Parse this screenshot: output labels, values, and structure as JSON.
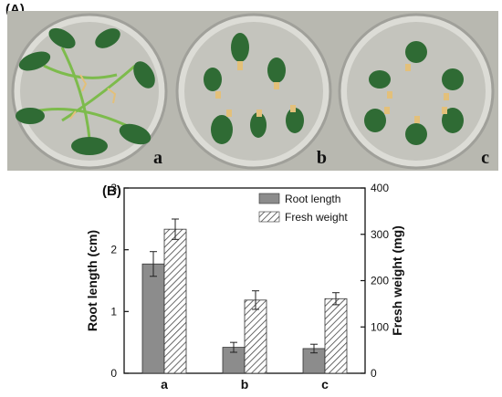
{
  "panels": {
    "a_label": "(A)",
    "b_label": "(B)"
  },
  "photos": [
    {
      "tag": "a"
    },
    {
      "tag": "b"
    },
    {
      "tag": "c"
    }
  ],
  "colors": {
    "root_bar": "#8c8c8c",
    "hatch": "#444444",
    "axis": "#111111",
    "petri_bg": "#c9c9c4",
    "leaf": "#2f6b34",
    "stem": "#7dbb4c",
    "root": "#e3c07a"
  },
  "chart_data": {
    "type": "bar",
    "categories": [
      "a",
      "b",
      "c"
    ],
    "y_left": {
      "label": "Root length (cm)",
      "range": [
        0,
        3
      ],
      "ticks": [
        0,
        1,
        2,
        3
      ]
    },
    "y_right": {
      "label": "Fresh weight (mg)",
      "range": [
        0,
        400
      ],
      "ticks": [
        0,
        100,
        200,
        300,
        400
      ]
    },
    "series": [
      {
        "name": "Root length",
        "axis": "left",
        "style": "solid",
        "values": [
          1.77,
          0.42,
          0.4
        ],
        "errors": [
          0.2,
          0.08,
          0.07
        ]
      },
      {
        "name": "Fresh weight",
        "axis": "right",
        "style": "hatched",
        "values": [
          311,
          158,
          161
        ],
        "errors": [
          22,
          20,
          13
        ]
      }
    ],
    "legend_position": "top-right",
    "grid": false
  }
}
